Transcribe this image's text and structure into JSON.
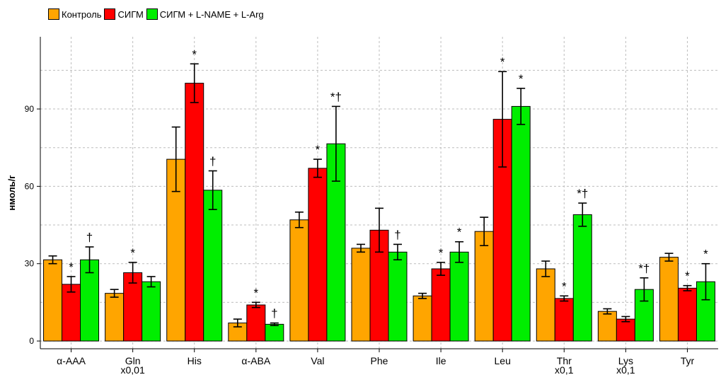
{
  "chart_data": {
    "type": "bar",
    "ylabel": "нмоль/г",
    "ylim": [
      -3,
      118
    ],
    "yticks": [
      0,
      30,
      60,
      90
    ],
    "grid": true,
    "legend_position": "top-left",
    "categories": [
      "α-AAA",
      "Gln\nx0,01",
      "His",
      "α-ABA",
      "Val",
      "Phe",
      "Ile",
      "Leu",
      "Thr\nx0,1",
      "Lys\nx0,1",
      "Tyr"
    ],
    "series": [
      {
        "name": "Контроль",
        "color": "#FFA500",
        "values": [
          31.5,
          18.5,
          70.5,
          7,
          47,
          36,
          17.5,
          42.5,
          28,
          11.5,
          32.5
        ],
        "errors": [
          1.5,
          1.5,
          12.5,
          1.5,
          3,
          1.5,
          1,
          5.5,
          3,
          1,
          1.5
        ],
        "annotations": [
          "",
          "",
          "",
          "",
          "",
          "",
          "",
          "",
          "",
          "",
          ""
        ]
      },
      {
        "name": "СИГМ",
        "color": "#FF0000",
        "values": [
          22,
          26.5,
          100,
          14,
          67,
          43,
          28,
          86,
          16.5,
          8.5,
          20.5
        ],
        "errors": [
          3,
          4,
          7.5,
          1,
          3.5,
          8.5,
          2.5,
          18.5,
          1,
          1,
          1
        ],
        "annotations": [
          "*",
          "*",
          "*",
          "*",
          "*",
          "",
          "*",
          "*",
          "*",
          "",
          "*"
        ]
      },
      {
        "name": "СИГМ + L-NAME + L-Arg",
        "color": "#00EE00",
        "values": [
          31.5,
          23,
          58.5,
          6.5,
          76.5,
          34.5,
          34.5,
          91,
          49,
          20,
          23
        ],
        "errors": [
          5,
          2,
          7.5,
          0.5,
          14.5,
          3,
          4,
          7,
          4.5,
          4.5,
          7
        ],
        "annotations": [
          "†",
          "",
          "†",
          "†",
          "*†",
          "†",
          "*",
          "*",
          "*†",
          "*†",
          "*"
        ]
      }
    ]
  }
}
